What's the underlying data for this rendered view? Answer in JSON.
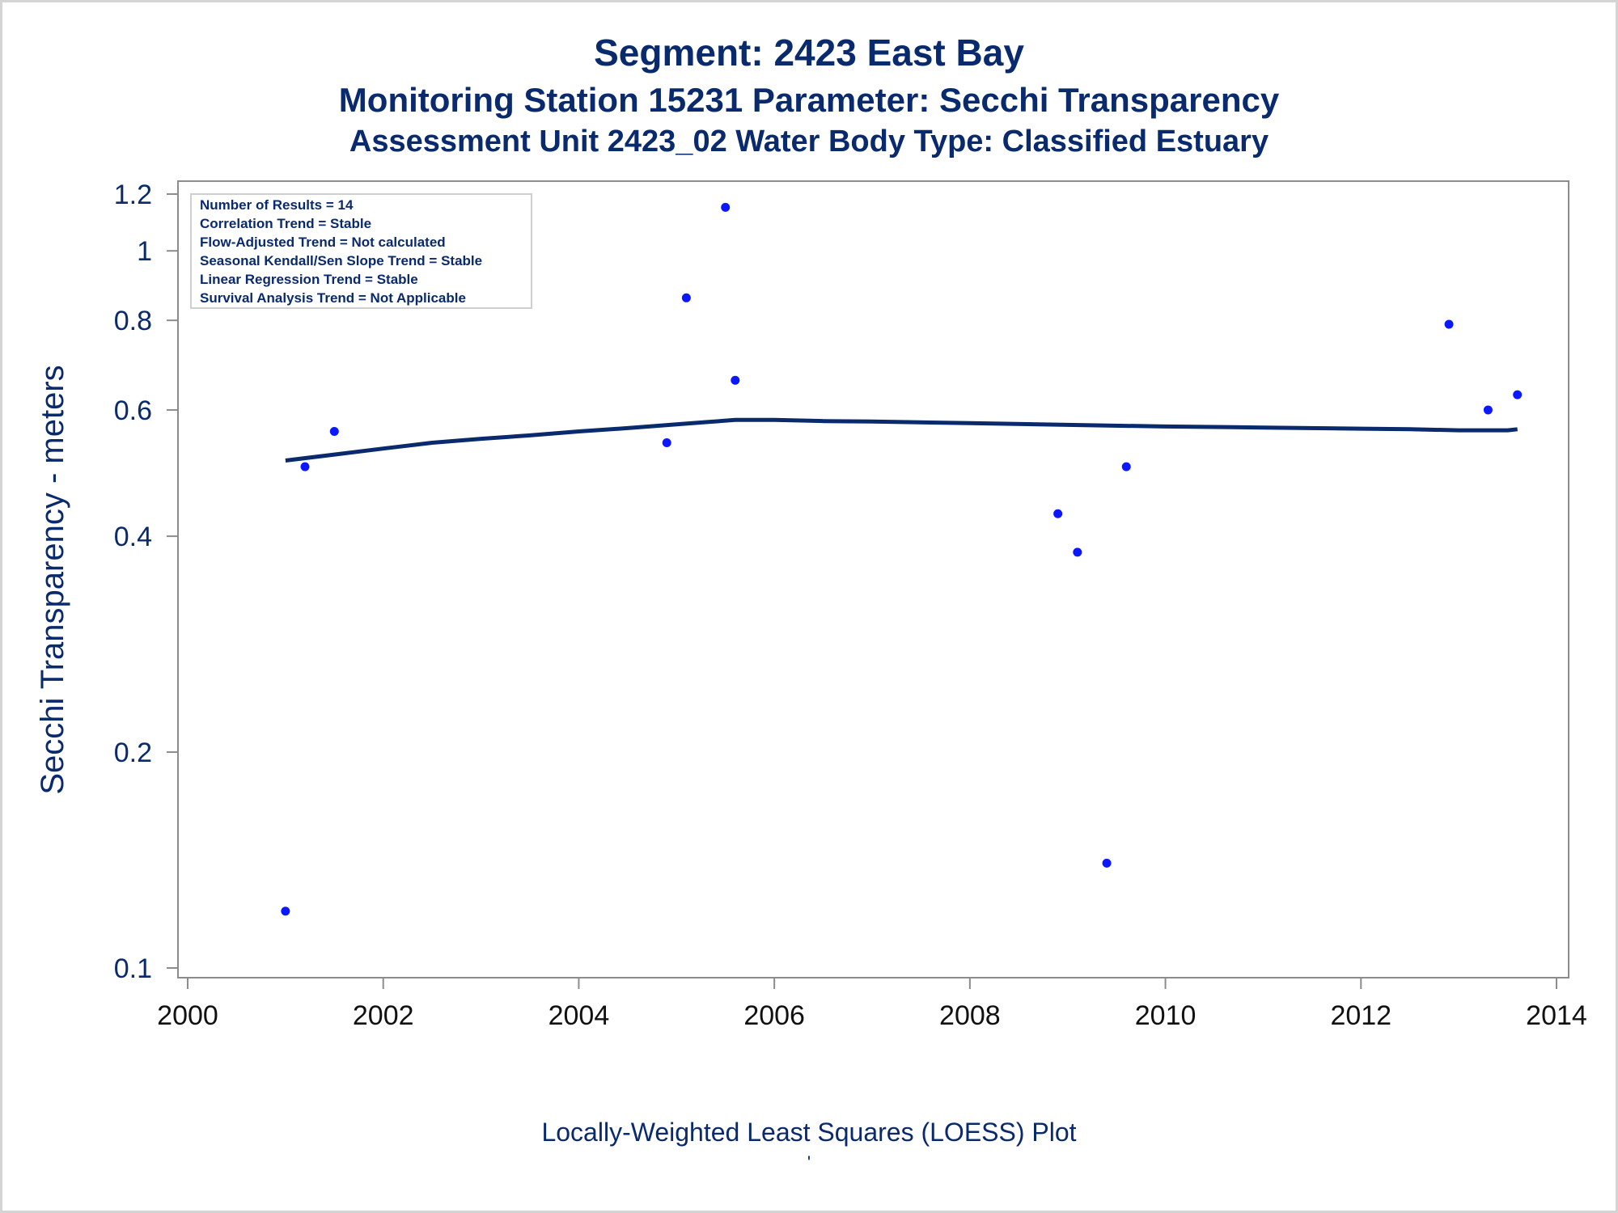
{
  "titles": {
    "line1": "Segment: 2423  East Bay",
    "line2": "Monitoring Station 15231 Parameter: Secchi Transparency",
    "line3": "Assessment Unit 2423_02   Water Body Type: Classified Estuary"
  },
  "footnotes": {
    "line1": "Locally-Weighted Least Squares (LOESS) Plot",
    "line2": "'"
  },
  "legend_box": {
    "lines": [
      "Number of Results = 14",
      "Correlation Trend = Stable",
      "Flow-Adjusted Trend = Not calculated",
      "Seasonal Kendall/Sen Slope Trend = Stable",
      "Linear Regression Trend = Stable",
      "Survival Analysis Trend = Not Applicable"
    ]
  },
  "colors": {
    "title": "#0a2a6e",
    "point": "#0b17ff",
    "loess_line": "#0a2a6e",
    "axis": "#8c8c8c"
  },
  "chart_data": {
    "type": "scatter",
    "ylabel": "Secchi Transparency - meters",
    "xlabel": "",
    "yscale": "log",
    "xlim": [
      2000,
      2014
    ],
    "ylim": [
      0.1,
      1.2
    ],
    "xticks": [
      2000,
      2002,
      2004,
      2006,
      2008,
      2010,
      2012,
      2014
    ],
    "yticks": [
      0.1,
      0.2,
      0.4,
      0.6,
      0.8,
      1,
      1.2
    ],
    "ytick_labels": [
      "0.1",
      "0.2",
      "0.4",
      "0.6",
      "0.8",
      "1",
      "1.2"
    ],
    "grid": false,
    "series": [
      {
        "kind": "points",
        "x": [
          2001.0,
          2001.2,
          2001.5,
          2004.9,
          2005.1,
          2005.5,
          2005.6,
          2008.9,
          2009.1,
          2009.4,
          2009.6,
          2012.9,
          2013.3,
          2013.6
        ],
        "y": [
          0.12,
          0.5,
          0.56,
          0.54,
          0.86,
          1.15,
          0.66,
          0.43,
          0.38,
          0.14,
          0.5,
          0.79,
          0.6,
          0.63
        ]
      },
      {
        "kind": "loess",
        "x": [
          2001.0,
          2001.5,
          2002.0,
          2002.5,
          2003.0,
          2003.5,
          2004.0,
          2004.5,
          2005.0,
          2005.3,
          2005.6,
          2006.0,
          2006.5,
          2007.0,
          2008.0,
          2009.0,
          2010.0,
          2011.0,
          2012.0,
          2012.5,
          2013.0,
          2013.5,
          2013.6
        ],
        "y": [
          0.51,
          0.52,
          0.53,
          0.54,
          0.547,
          0.553,
          0.56,
          0.566,
          0.573,
          0.577,
          0.581,
          0.581,
          0.579,
          0.578,
          0.575,
          0.572,
          0.569,
          0.567,
          0.565,
          0.564,
          0.562,
          0.562,
          0.564
        ]
      }
    ]
  }
}
